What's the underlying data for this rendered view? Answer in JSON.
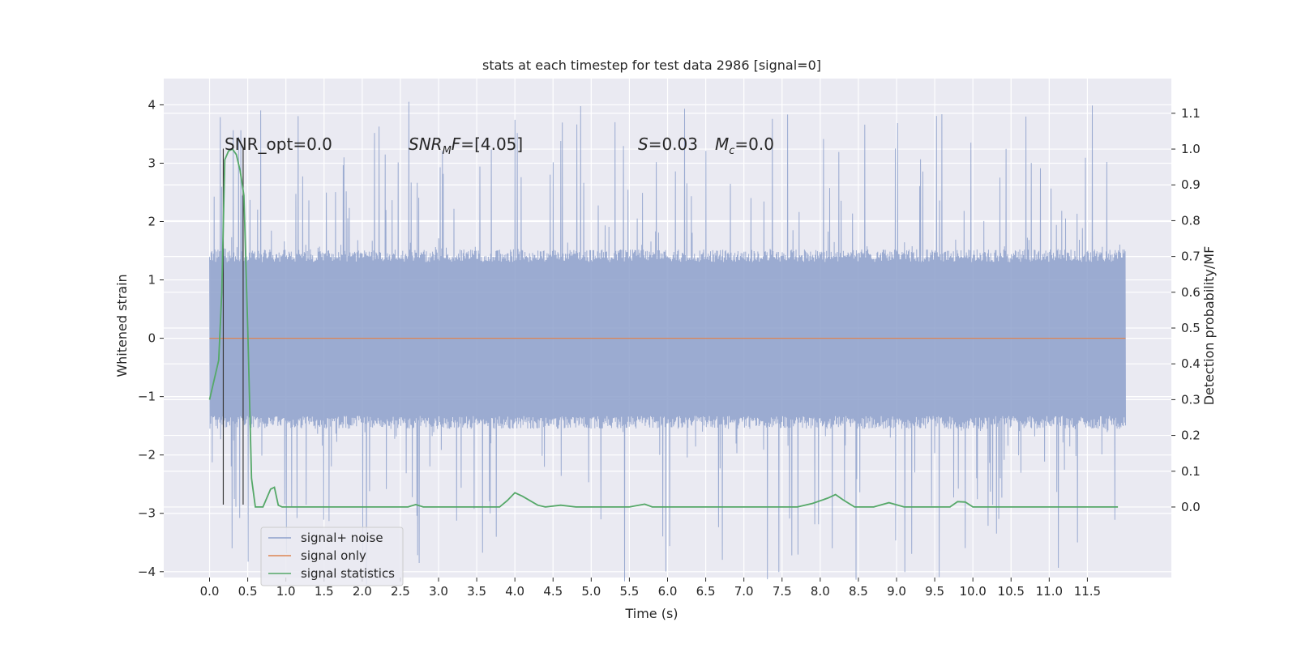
{
  "chart_data": {
    "type": "line",
    "title": "stats at each timestep for test data 2986 [signal=0]",
    "xlabel": "Time (s)",
    "ylabel_left": "Whitened strain",
    "ylabel_right": "Detection probability/MF",
    "xlim": [
      -0.6,
      12.6
    ],
    "ylim_left": [
      -4.1,
      4.45
    ],
    "ylim_right": [
      -0.197,
      1.197
    ],
    "x_ticks": [
      "0.0",
      "0.5",
      "1.0",
      "1.5",
      "2.0",
      "2.5",
      "3.0",
      "3.5",
      "4.0",
      "4.5",
      "5.0",
      "5.5",
      "6.0",
      "6.5",
      "7.0",
      "7.5",
      "8.0",
      "8.5",
      "9.0",
      "9.5",
      "10.0",
      "10.5",
      "11.0",
      "11.5"
    ],
    "y_ticks_left": [
      "4",
      "3",
      "2",
      "1",
      "0",
      "−1",
      "−2",
      "−3",
      "−4"
    ],
    "y_ticks_right": [
      "1.1",
      "1.0",
      "0.9",
      "0.8",
      "0.7",
      "0.6",
      "0.5",
      "0.4",
      "0.3",
      "0.2",
      "0.1",
      "0.0"
    ],
    "grid": true,
    "legend_position": "lower-left",
    "annotations": {
      "snr_opt": "SNR_opt=0.0",
      "snr_mf": "[4.05]",
      "s_val": "=0.03",
      "mc_val": "=0.0"
    },
    "vertical_markers": [
      0.18,
      0.44
    ],
    "series": [
      {
        "name": "signal+ noise",
        "color": "#8da0cb",
        "axis": "left",
        "x_range": [
          0,
          12
        ],
        "typical_band": [
          -1.5,
          1.45
        ],
        "peak_range": [
          -3.7,
          4.1
        ]
      },
      {
        "name": "signal only",
        "color": "#dd8452",
        "axis": "left",
        "x": [
          0,
          12
        ],
        "y": [
          0,
          0
        ]
      },
      {
        "name": "signal statistics",
        "color": "#55a868",
        "axis": "right",
        "x": [
          0,
          0.12,
          0.16,
          0.2,
          0.25,
          0.3,
          0.35,
          0.4,
          0.45,
          0.5,
          0.55,
          0.6,
          0.65,
          0.7,
          0.8,
          0.85,
          0.9,
          0.95,
          1.0,
          1.05,
          1.1,
          1.2,
          2.0,
          2.6,
          2.7,
          2.8,
          3.0,
          3.8,
          3.9,
          4.0,
          4.1,
          4.3,
          4.4,
          4.6,
          4.8,
          5.0,
          5.5,
          5.7,
          5.8,
          6.0,
          6.5,
          6.8,
          7.5,
          7.7,
          7.9,
          8.1,
          8.2,
          8.3,
          8.45,
          8.7,
          8.9,
          9.1,
          9.7,
          9.8,
          9.9,
          10.0,
          10.5,
          11.0,
          11.5,
          11.9
        ],
        "y": [
          0.3,
          0.41,
          0.6,
          0.97,
          0.995,
          1.0,
          0.985,
          0.94,
          0.87,
          0.5,
          0.08,
          0.0,
          0.0,
          0.0,
          0.05,
          0.055,
          0.005,
          0.0,
          0.0,
          0.0,
          0.0,
          0.0,
          0.0,
          0.0,
          0.007,
          0.0,
          0.0,
          0.0,
          0.018,
          0.04,
          0.03,
          0.005,
          0.0,
          0.005,
          0.0,
          0.0,
          0.0,
          0.008,
          0.0,
          0.0,
          0.0,
          0.0,
          0.0,
          0.0,
          0.01,
          0.025,
          0.035,
          0.02,
          0.0,
          0.0,
          0.012,
          0.0,
          0.0,
          0.015,
          0.014,
          0.0,
          0.0,
          0.0,
          0.0,
          0.0
        ]
      }
    ]
  }
}
